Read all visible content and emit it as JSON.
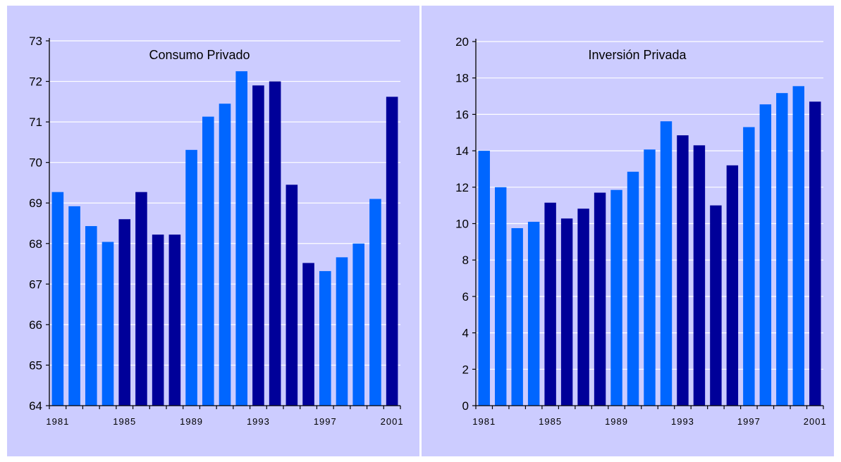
{
  "colors": {
    "background": "#ccccff",
    "light_bar": "#0066ff",
    "dark_bar": "#000099",
    "grid": "#ffffff",
    "axis": "#000000"
  },
  "chart_data": [
    {
      "type": "bar",
      "title": "Consumo Privado",
      "xlabel": "",
      "ylabel": "",
      "categories": [
        "1981",
        "1982",
        "1983",
        "1984",
        "1985",
        "1986",
        "1987",
        "1988",
        "1989",
        "1990",
        "1991",
        "1992",
        "1993",
        "1994",
        "1995",
        "1996",
        "1997",
        "1998",
        "1999",
        "2000",
        "2001"
      ],
      "values": [
        69.27,
        68.92,
        68.43,
        68.04,
        68.6,
        69.27,
        68.22,
        68.22,
        70.31,
        71.13,
        71.45,
        72.25,
        71.9,
        72.0,
        69.45,
        67.52,
        67.32,
        67.66,
        68.0,
        69.1,
        71.62
      ],
      "bar_shade": [
        "light",
        "light",
        "light",
        "light",
        "dark",
        "dark",
        "dark",
        "dark",
        "light",
        "light",
        "light",
        "light",
        "dark",
        "dark",
        "dark",
        "dark",
        "light",
        "light",
        "light",
        "light",
        "dark"
      ],
      "ylim": [
        64,
        73
      ],
      "yticks": [
        "64",
        "65",
        "66",
        "67",
        "68",
        "69",
        "70",
        "71",
        "72",
        "73"
      ],
      "xtick_labels": [
        "1981",
        "1985",
        "1989",
        "1993",
        "1997",
        "2001"
      ],
      "grid": true
    },
    {
      "type": "bar",
      "title": "Inversión Privada",
      "xlabel": "",
      "ylabel": "",
      "categories": [
        "1981",
        "1982",
        "1983",
        "1984",
        "1985",
        "1986",
        "1987",
        "1988",
        "1989",
        "1990",
        "1991",
        "1992",
        "1993",
        "1994",
        "1995",
        "1996",
        "1997",
        "1998",
        "1999",
        "2000",
        "2001"
      ],
      "values": [
        14.0,
        12.0,
        9.75,
        10.1,
        11.15,
        10.28,
        10.82,
        11.7,
        11.85,
        12.85,
        14.07,
        15.62,
        14.85,
        14.3,
        11.0,
        13.2,
        15.3,
        16.55,
        17.17,
        17.55,
        16.7
      ],
      "bar_shade": [
        "light",
        "light",
        "light",
        "light",
        "dark",
        "dark",
        "dark",
        "dark",
        "light",
        "light",
        "light",
        "light",
        "dark",
        "dark",
        "dark",
        "dark",
        "light",
        "light",
        "light",
        "light",
        "dark"
      ],
      "ylim": [
        0,
        20
      ],
      "yticks": [
        "0",
        "2",
        "4",
        "6",
        "8",
        "10",
        "12",
        "14",
        "16",
        "18",
        "20"
      ],
      "xtick_labels": [
        "1981",
        "1985",
        "1989",
        "1993",
        "1997",
        "2001"
      ],
      "grid": true
    }
  ]
}
